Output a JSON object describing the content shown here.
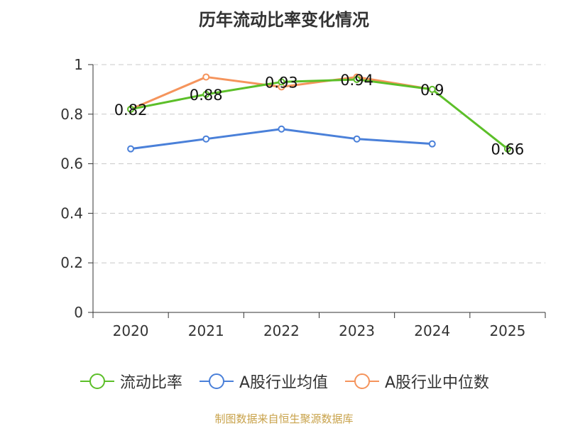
{
  "chart_data": {
    "type": "line",
    "title": "历年流动比率变化情况",
    "categories": [
      "2020",
      "2021",
      "2022",
      "2023",
      "2024",
      "2025"
    ],
    "ylim": [
      0,
      1
    ],
    "yticks": [
      "0",
      "0.2",
      "0.4",
      "0.6",
      "0.8",
      "1"
    ],
    "ytick_values": [
      0,
      0.2,
      0.4,
      0.6,
      0.8,
      1
    ],
    "grid": true,
    "legend_position": "bottom",
    "series": [
      {
        "name": "流动比率",
        "color": "#5cbf29",
        "values": [
          0.82,
          0.88,
          0.93,
          0.94,
          0.9,
          0.66
        ],
        "labels": [
          "0.82",
          "0.88",
          "0.93",
          "0.94",
          "0.9",
          "0.66"
        ]
      },
      {
        "name": "A股行业均值",
        "color": "#4a80d9",
        "values": [
          0.66,
          0.7,
          0.74,
          0.7,
          0.68,
          null
        ]
      },
      {
        "name": "A股行业中位数",
        "color": "#f5945c",
        "values": [
          0.82,
          0.95,
          0.91,
          0.95,
          0.9,
          null
        ]
      }
    ]
  },
  "source": "制图数据来自恒生聚源数据库"
}
